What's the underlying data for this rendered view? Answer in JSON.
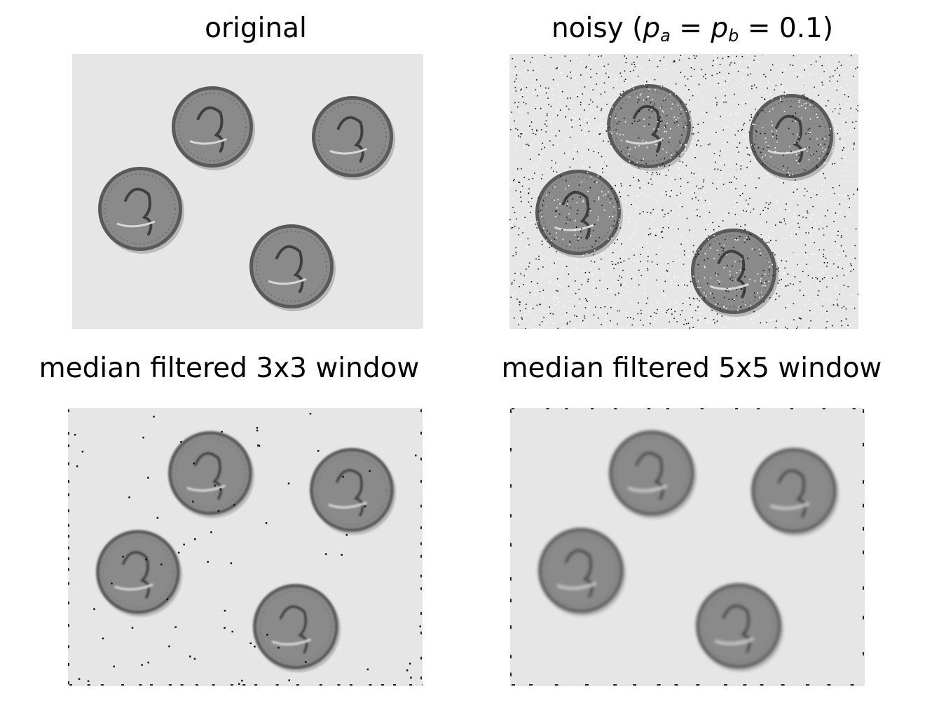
{
  "panels": [
    {
      "id": "original",
      "title": "original",
      "noise": "none"
    },
    {
      "id": "noisy",
      "title_parts": {
        "prefix": "noisy (",
        "pa_var": "p",
        "pa_sub": "a",
        "eq1": " = ",
        "pb_var": "p",
        "pb_sub": "b",
        "eq2": " = 0.1)"
      },
      "noise": "salt-and-pepper",
      "noise_density": 0.1
    },
    {
      "id": "median-3x3",
      "title": "median filtered 3x3 window",
      "noise": "residual-specks"
    },
    {
      "id": "median-5x5",
      "title": "median filtered 5x5 window",
      "noise": "smoothed"
    }
  ],
  "colors": {
    "background": "#e6e6e6",
    "coin": "#8a8a8a",
    "coin_rim": "#5a5a5a",
    "coin_shadow": "#b9b9b9"
  }
}
